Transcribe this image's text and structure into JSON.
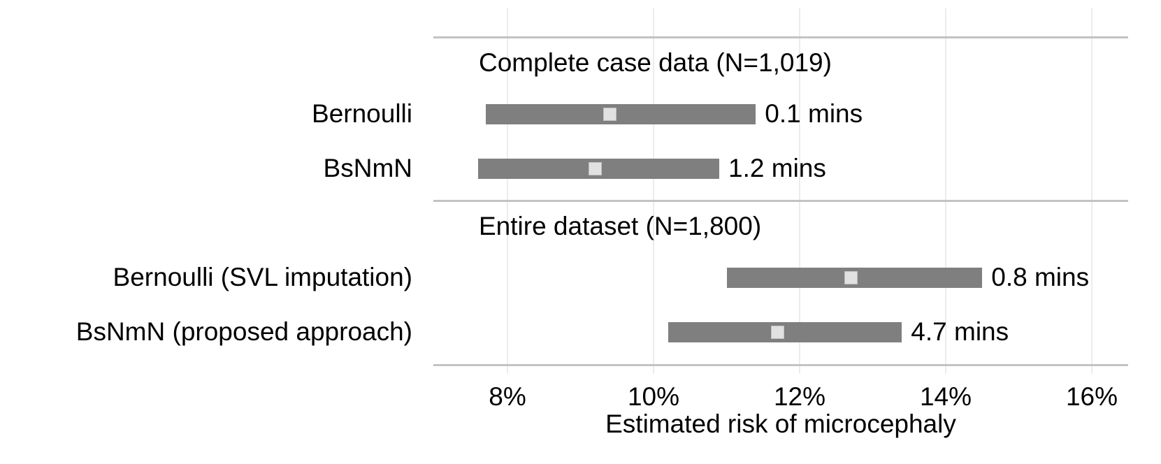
{
  "chart_data": {
    "type": "bar",
    "variant": "horizontal-interval-plot",
    "title": "",
    "xlabel": "Estimated risk of microcephaly",
    "x_unit": "%",
    "xlim": [
      7.0,
      16.5
    ],
    "x_ticks": [
      8,
      10,
      12,
      14,
      16
    ],
    "x_tick_labels": [
      "8%",
      "10%",
      "12%",
      "14%",
      "16%"
    ],
    "grid": "vertical-only",
    "legend": "none",
    "groups": [
      {
        "header": "Complete case data (N=1,019)",
        "rows": [
          {
            "label": "Bernoulli",
            "low": 7.7,
            "high": 11.4,
            "estimate": 9.4,
            "annotation": "0.1 mins"
          },
          {
            "label": "BsNmN",
            "low": 7.6,
            "high": 10.9,
            "estimate": 9.2,
            "annotation": "1.2 mins"
          }
        ]
      },
      {
        "header": "Entire dataset (N=1,800)",
        "rows": [
          {
            "label": "Bernoulli (SVL imputation)",
            "low": 11.0,
            "high": 14.5,
            "estimate": 12.7,
            "annotation": "0.8 mins"
          },
          {
            "label": "BsNmN (proposed approach)",
            "low": 10.2,
            "high": 13.4,
            "estimate": 11.7,
            "annotation": "4.7 mins"
          }
        ]
      }
    ],
    "colors": {
      "bar": "#7f7f7f",
      "marker_fill": "#e1e1e1",
      "marker_border": "#c0c0c0",
      "gridline": "#ececec",
      "panel_line": "#c3c3c3",
      "text": "#000000"
    }
  }
}
